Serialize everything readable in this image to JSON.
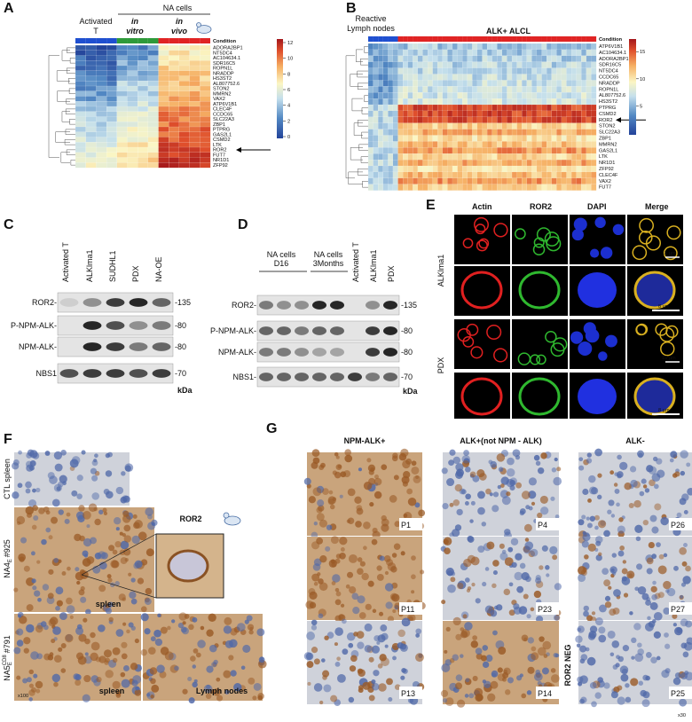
{
  "panels": {
    "a": {
      "label": "A",
      "activated": "Activated",
      "t": "T",
      "na_cells": "NA cells",
      "in1": "in",
      "vitro": "vitro",
      "in2": "in",
      "vivo": "vivo",
      "condition": "Condition",
      "genes": [
        "ADORA2BP1",
        "NT5DC4",
        "AC104634.1",
        "SDR16C5",
        "ROPN1L",
        "NRADDP",
        "HS3ST2",
        "AL807752.6",
        "STON2",
        "MMRN2",
        "VAX2",
        "ATP6V1B1",
        "CLEC4F",
        "CCDC65",
        "SLC22A3",
        "ZBP1",
        "PTPRG",
        "GAS2L1",
        "CSMD2",
        "LTK",
        "ROR2",
        "FUT7",
        "NR1D1",
        "ZFP92"
      ],
      "scale": [
        12,
        10,
        8,
        6,
        4,
        2,
        0
      ]
    },
    "b": {
      "label": "B",
      "reactive": "Reactive",
      "lymph": "Lymph nodes",
      "alcl": "ALK+ ALCL",
      "condition": "Condition",
      "genes": [
        "ATP6V1B1",
        "AC104634.1",
        "ADORA2BP1",
        "SDR16C5",
        "NT5DC4",
        "CCDC65",
        "NRADDP",
        "ROPN1L",
        "AL807752.6",
        "HS3ST2",
        "PTPRG",
        "CSMD2",
        "ROR2",
        "STON2",
        "SLC22A3",
        "ZBP1",
        "MMRN2",
        "GAS2L1",
        "LTK",
        "NR1D1",
        "ZFP92",
        "CLEC4F",
        "VAX2",
        "FUT7"
      ],
      "scale": [
        15,
        10,
        5
      ]
    },
    "c": {
      "label": "C",
      "lanes": [
        "Activated  T",
        "ALKlma1",
        "SUDHL1",
        "PDX",
        "NA-OE"
      ],
      "rows": [
        "ROR2-",
        "P-NPM-ALK-",
        "NPM-ALK-",
        "NBS1"
      ],
      "sizes": [
        "-135",
        "-80",
        "-80",
        "-70"
      ],
      "unit": "kDa"
    },
    "d": {
      "label": "D",
      "group1": [
        "NA cells",
        "D16"
      ],
      "group2": [
        "NA cells",
        "3Months"
      ],
      "lanes": [
        "Activated T",
        "ALKlma1",
        "PDX"
      ],
      "rows": [
        "ROR2-",
        "P-NPM-ALK-",
        "NPM-ALK-",
        "NBS1-"
      ],
      "sizes": [
        "-135",
        "-80",
        "-80",
        "-70"
      ],
      "unit": "kDa"
    },
    "e": {
      "label": "E",
      "channels": [
        "Actin",
        "ROR2",
        "DAPI",
        "Merge"
      ],
      "rows": [
        "ALKlma1",
        "PDX"
      ],
      "bars": [
        "15 µm",
        "8 µm",
        "15 µm",
        "8 µm"
      ]
    },
    "f": {
      "label": "F",
      "ctl": "CTL spleen",
      "na4": [
        "NA4",
        "E",
        "#925"
      ],
      "na5": [
        "NA5",
        "E",
        "CD8",
        "#791"
      ],
      "ror2": "ROR2",
      "spleen1": "spleen",
      "spleen2": "spleen",
      "lymph": "Lymph nodes",
      "mag": "x100"
    },
    "g": {
      "label": "G",
      "headers": [
        "NPM-ALK+",
        "ALK+(not NPM - ALK)",
        "ALK-"
      ],
      "patients": [
        [
          "P1",
          "P4",
          "P26"
        ],
        [
          "P11",
          "P23",
          "P27"
        ],
        [
          "P13",
          "P14",
          "P25"
        ]
      ],
      "neg": "ROR2  NEG",
      "mag": "x30"
    }
  }
}
